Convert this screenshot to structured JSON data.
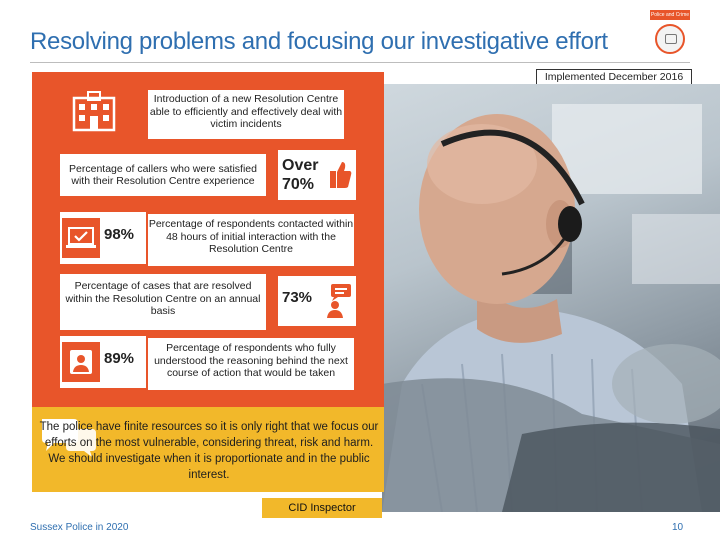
{
  "slide": {
    "title": "Resolving problems and focusing our investigative effort",
    "logo_text": "Police and Crime Commissioner",
    "implemented": "Implemented December 2016"
  },
  "stats": {
    "intro": "Introduction of a new Resolution Centre able to efficiently and effectively deal with victim incidents",
    "satisfied": {
      "text": "Percentage of callers who were satisfied with their Resolution Centre experience",
      "line1": "Over",
      "line2": "70%"
    },
    "contacted": {
      "text": "Percentage of respondents contacted within 48 hours of initial interaction with the Resolution Centre",
      "value": "98%"
    },
    "resolved": {
      "text": "Percentage of cases that are resolved within the Resolution Centre on an annual basis",
      "value": "73%"
    },
    "understood": {
      "text": "Percentage of respondents who fully understood the reasoning behind the next course of action that would be taken",
      "value": "89%"
    }
  },
  "quote": {
    "text": "The police have finite resources so it is only right that we focus our efforts on the most vulnerable, considering threat, risk and harm. We should investigate when it is proportionate and in the public interest.",
    "attribution": "CID Inspector"
  },
  "footer": {
    "left": "Sussex Police in 2020",
    "page": "10"
  },
  "colors": {
    "accent": "#e8552a",
    "quote_bg": "#f2b82a",
    "title": "#2f6fb0"
  },
  "icons": [
    "building-icon",
    "thumbs-up-icon",
    "laptop-check-icon",
    "speech-person-icon",
    "person-card-icon",
    "speech-bubbles-icon"
  ]
}
